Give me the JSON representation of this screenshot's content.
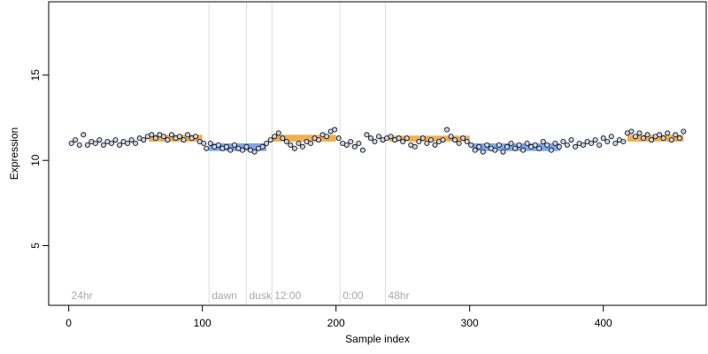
{
  "chart_data": {
    "type": "scatter",
    "title": "",
    "xlabel": "Sample index",
    "ylabel": "Expression",
    "xlim": [
      -15,
      477
    ],
    "ylim": [
      1.5,
      19.3
    ],
    "xticks": [
      0,
      100,
      200,
      300,
      400
    ],
    "yticks": [
      5,
      10,
      15
    ],
    "xtick_labels": [
      "0",
      "100",
      "200",
      "300",
      "400"
    ],
    "ytick_labels": [
      "5",
      "10",
      "15"
    ],
    "grid": false,
    "legend": "none",
    "colors": {
      "point_fill": "#c8d2e6",
      "point_edge": "#000000",
      "high_band": "#f0a030",
      "low_band": "#6495ed",
      "marker_line": "#dcdcdc",
      "marker_text": "#a9a9a9",
      "axis": "#000000"
    },
    "markers": [
      {
        "x": 0,
        "label": "24hr"
      },
      {
        "x": 105,
        "label": "dawn"
      },
      {
        "x": 133,
        "label": "dusk"
      },
      {
        "x": 152,
        "label": "12:00"
      },
      {
        "x": 203,
        "label": "0:00"
      },
      {
        "x": 237,
        "label": "48hr"
      }
    ],
    "bands": [
      {
        "type": "high",
        "x_start": 60,
        "x_end": 100,
        "y_low": 11.1,
        "y_high": 11.5
      },
      {
        "type": "low",
        "x_start": 105,
        "x_end": 148,
        "y_low": 10.55,
        "y_high": 11.0
      },
      {
        "type": "high",
        "x_start": 152,
        "x_end": 200,
        "y_low": 11.1,
        "y_high": 11.5
      },
      {
        "type": "high",
        "x_start": 240,
        "x_end": 300,
        "y_low": 11.1,
        "y_high": 11.45
      },
      {
        "type": "low",
        "x_start": 302,
        "x_end": 368,
        "y_low": 10.55,
        "y_high": 11.0
      },
      {
        "type": "high",
        "x_start": 418,
        "x_end": 460,
        "y_low": 11.1,
        "y_high": 11.5
      }
    ],
    "series": [
      {
        "values": [
          {
            "x": 2,
            "y": 11.0
          },
          {
            "x": 5,
            "y": 11.2
          },
          {
            "x": 8,
            "y": 10.9
          },
          {
            "x": 11,
            "y": 11.5
          },
          {
            "x": 14,
            "y": 10.9
          },
          {
            "x": 17,
            "y": 11.1
          },
          {
            "x": 20,
            "y": 11.0
          },
          {
            "x": 23,
            "y": 11.2
          },
          {
            "x": 26,
            "y": 10.9
          },
          {
            "x": 29,
            "y": 11.1
          },
          {
            "x": 32,
            "y": 11.0
          },
          {
            "x": 35,
            "y": 11.2
          },
          {
            "x": 38,
            "y": 10.9
          },
          {
            "x": 41,
            "y": 11.1
          },
          {
            "x": 44,
            "y": 11.0
          },
          {
            "x": 47,
            "y": 11.2
          },
          {
            "x": 50,
            "y": 11.0
          },
          {
            "x": 53,
            "y": 11.3
          },
          {
            "x": 56,
            "y": 11.2
          },
          {
            "x": 59,
            "y": 11.4
          },
          {
            "x": 62,
            "y": 11.5
          },
          {
            "x": 65,
            "y": 11.3
          },
          {
            "x": 68,
            "y": 11.5
          },
          {
            "x": 71,
            "y": 11.4
          },
          {
            "x": 74,
            "y": 11.2
          },
          {
            "x": 77,
            "y": 11.5
          },
          {
            "x": 80,
            "y": 11.3
          },
          {
            "x": 83,
            "y": 11.4
          },
          {
            "x": 86,
            "y": 11.2
          },
          {
            "x": 89,
            "y": 11.5
          },
          {
            "x": 92,
            "y": 11.3
          },
          {
            "x": 95,
            "y": 11.4
          },
          {
            "x": 98,
            "y": 11.1
          },
          {
            "x": 101,
            "y": 11.0
          },
          {
            "x": 103,
            "y": 10.7
          },
          {
            "x": 106,
            "y": 11.0
          },
          {
            "x": 109,
            "y": 10.8
          },
          {
            "x": 112,
            "y": 10.9
          },
          {
            "x": 115,
            "y": 10.7
          },
          {
            "x": 118,
            "y": 10.8
          },
          {
            "x": 121,
            "y": 10.6
          },
          {
            "x": 124,
            "y": 10.9
          },
          {
            "x": 127,
            "y": 10.7
          },
          {
            "x": 130,
            "y": 10.6
          },
          {
            "x": 133,
            "y": 10.8
          },
          {
            "x": 136,
            "y": 10.6
          },
          {
            "x": 139,
            "y": 10.5
          },
          {
            "x": 142,
            "y": 10.7
          },
          {
            "x": 145,
            "y": 10.8
          },
          {
            "x": 148,
            "y": 11.0
          },
          {
            "x": 151,
            "y": 11.2
          },
          {
            "x": 154,
            "y": 11.4
          },
          {
            "x": 157,
            "y": 11.6
          },
          {
            "x": 160,
            "y": 11.3
          },
          {
            "x": 163,
            "y": 11.1
          },
          {
            "x": 166,
            "y": 10.9
          },
          {
            "x": 169,
            "y": 10.7
          },
          {
            "x": 172,
            "y": 11.0
          },
          {
            "x": 175,
            "y": 10.8
          },
          {
            "x": 178,
            "y": 11.1
          },
          {
            "x": 181,
            "y": 11.0
          },
          {
            "x": 184,
            "y": 11.3
          },
          {
            "x": 187,
            "y": 11.2
          },
          {
            "x": 190,
            "y": 11.5
          },
          {
            "x": 193,
            "y": 11.4
          },
          {
            "x": 196,
            "y": 11.7
          },
          {
            "x": 199,
            "y": 11.8
          },
          {
            "x": 202,
            "y": 11.3
          },
          {
            "x": 205,
            "y": 11.0
          },
          {
            "x": 208,
            "y": 10.9
          },
          {
            "x": 211,
            "y": 11.1
          },
          {
            "x": 214,
            "y": 10.8
          },
          {
            "x": 217,
            "y": 11.0
          },
          {
            "x": 220,
            "y": 10.6
          },
          {
            "x": 223,
            "y": 11.5
          },
          {
            "x": 226,
            "y": 11.3
          },
          {
            "x": 229,
            "y": 11.1
          },
          {
            "x": 232,
            "y": 11.4
          },
          {
            "x": 235,
            "y": 11.2
          },
          {
            "x": 238,
            "y": 11.3
          },
          {
            "x": 241,
            "y": 11.4
          },
          {
            "x": 244,
            "y": 11.2
          },
          {
            "x": 247,
            "y": 11.3
          },
          {
            "x": 250,
            "y": 11.1
          },
          {
            "x": 253,
            "y": 11.3
          },
          {
            "x": 256,
            "y": 10.9
          },
          {
            "x": 259,
            "y": 10.8
          },
          {
            "x": 262,
            "y": 11.1
          },
          {
            "x": 265,
            "y": 11.3
          },
          {
            "x": 268,
            "y": 11.0
          },
          {
            "x": 271,
            "y": 11.2
          },
          {
            "x": 274,
            "y": 10.9
          },
          {
            "x": 277,
            "y": 11.1
          },
          {
            "x": 280,
            "y": 11.2
          },
          {
            "x": 283,
            "y": 11.8
          },
          {
            "x": 286,
            "y": 11.4
          },
          {
            "x": 289,
            "y": 11.2
          },
          {
            "x": 292,
            "y": 11.0
          },
          {
            "x": 295,
            "y": 11.3
          },
          {
            "x": 298,
            "y": 11.1
          },
          {
            "x": 301,
            "y": 10.9
          },
          {
            "x": 304,
            "y": 10.6
          },
          {
            "x": 307,
            "y": 10.8
          },
          {
            "x": 310,
            "y": 10.5
          },
          {
            "x": 313,
            "y": 10.9
          },
          {
            "x": 316,
            "y": 10.7
          },
          {
            "x": 319,
            "y": 10.6
          },
          {
            "x": 322,
            "y": 10.9
          },
          {
            "x": 325,
            "y": 10.5
          },
          {
            "x": 328,
            "y": 10.8
          },
          {
            "x": 331,
            "y": 11.0
          },
          {
            "x": 334,
            "y": 10.7
          },
          {
            "x": 337,
            "y": 10.9
          },
          {
            "x": 340,
            "y": 10.6
          },
          {
            "x": 343,
            "y": 11.0
          },
          {
            "x": 346,
            "y": 10.8
          },
          {
            "x": 349,
            "y": 10.9
          },
          {
            "x": 352,
            "y": 10.7
          },
          {
            "x": 355,
            "y": 11.1
          },
          {
            "x": 358,
            "y": 10.9
          },
          {
            "x": 361,
            "y": 10.6
          },
          {
            "x": 364,
            "y": 11.0
          },
          {
            "x": 367,
            "y": 10.8
          },
          {
            "x": 370,
            "y": 11.1
          },
          {
            "x": 373,
            "y": 10.9
          },
          {
            "x": 376,
            "y": 11.2
          },
          {
            "x": 379,
            "y": 10.8
          },
          {
            "x": 382,
            "y": 11.0
          },
          {
            "x": 385,
            "y": 10.9
          },
          {
            "x": 388,
            "y": 11.1
          },
          {
            "x": 391,
            "y": 11.0
          },
          {
            "x": 394,
            "y": 11.2
          },
          {
            "x": 397,
            "y": 10.9
          },
          {
            "x": 400,
            "y": 11.3
          },
          {
            "x": 403,
            "y": 11.1
          },
          {
            "x": 406,
            "y": 11.4
          },
          {
            "x": 409,
            "y": 11.0
          },
          {
            "x": 412,
            "y": 11.2
          },
          {
            "x": 415,
            "y": 11.1
          },
          {
            "x": 418,
            "y": 11.6
          },
          {
            "x": 421,
            "y": 11.7
          },
          {
            "x": 424,
            "y": 11.4
          },
          {
            "x": 427,
            "y": 11.6
          },
          {
            "x": 430,
            "y": 11.3
          },
          {
            "x": 433,
            "y": 11.5
          },
          {
            "x": 436,
            "y": 11.2
          },
          {
            "x": 439,
            "y": 11.4
          },
          {
            "x": 442,
            "y": 11.5
          },
          {
            "x": 445,
            "y": 11.3
          },
          {
            "x": 448,
            "y": 11.6
          },
          {
            "x": 451,
            "y": 11.2
          },
          {
            "x": 454,
            "y": 11.5
          },
          {
            "x": 457,
            "y": 11.3
          },
          {
            "x": 460,
            "y": 11.7
          }
        ]
      }
    ]
  }
}
